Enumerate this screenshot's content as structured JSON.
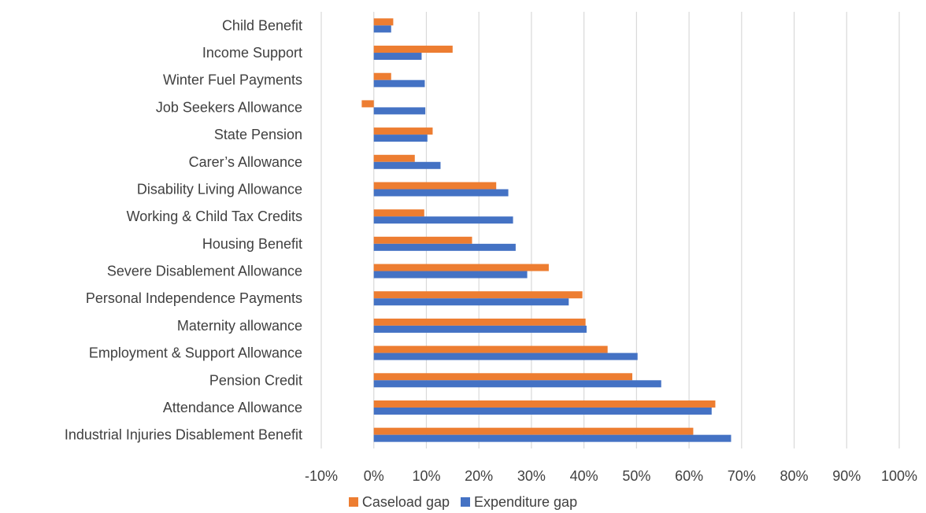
{
  "chart_data": {
    "type": "bar",
    "orientation": "horizontal",
    "categories": [
      "Child Benefit",
      "Income Support",
      "Winter Fuel Payments",
      "Job Seekers Allowance",
      "State Pension",
      "Carer’s Allowance",
      "Disability Living Allowance ",
      "Working & Child Tax Credits",
      "Housing Benefit",
      "Severe Disablement Allowance",
      "Personal Independence Payments ",
      "Maternity allowance",
      "Employment & Support Allowance",
      "Pension Credit",
      "Attendance Allowance",
      "Industrial Injuries Disablement Benefit"
    ],
    "series": [
      {
        "name": "Caseload gap",
        "color": "#ED7D31",
        "values": [
          3.7,
          15.0,
          3.3,
          -2.3,
          11.2,
          7.8,
          23.3,
          9.6,
          18.7,
          33.3,
          39.7,
          40.3,
          44.5,
          49.2,
          65.0,
          60.8
        ]
      },
      {
        "name": "Expenditure gap",
        "color": "#4472C4",
        "values": [
          3.3,
          9.1,
          9.7,
          9.8,
          10.2,
          12.7,
          25.6,
          26.5,
          27.0,
          29.2,
          37.1,
          40.5,
          50.2,
          54.7,
          64.3,
          68.0
        ]
      }
    ],
    "xlim": [
      -10,
      100
    ],
    "xticks": [
      "-10%",
      "0%",
      "10%",
      "20%",
      "30%",
      "40%",
      "50%",
      "60%",
      "70%",
      "80%",
      "90%",
      "100%"
    ],
    "xlabel": "",
    "ylabel": "",
    "grid": "vertical",
    "legend_position": "bottom"
  },
  "legend": {
    "items": [
      "Caseload gap",
      "Expenditure gap"
    ]
  }
}
